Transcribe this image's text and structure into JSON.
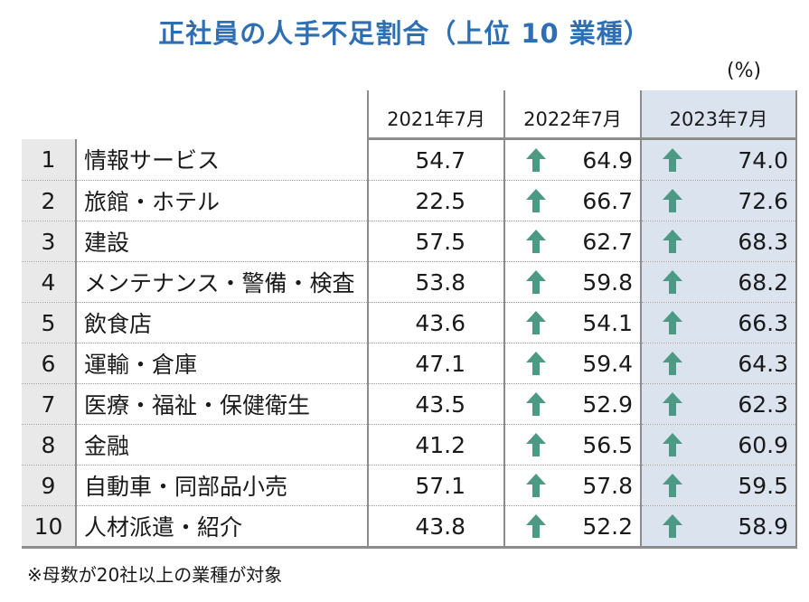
{
  "title": "正社員の人手不足割合（上位 10 業種）",
  "unit": "(%)",
  "note": "※母数が20社以上の業種が対象",
  "colors": {
    "title": "#2e6fb4",
    "arrow": "#4c9a84",
    "highlight_column": "#dbe3ef",
    "rank_cell": "#e9e9e9"
  },
  "icons": {
    "trend": "up-arrow-icon"
  },
  "chart_data": {
    "type": "table",
    "title": "正社員の人手不足割合（上位 10 業種）",
    "unit": "(%)",
    "columns": [
      "2021年7月",
      "2022年7月",
      "2023年7月"
    ],
    "rows": [
      {
        "rank": "1",
        "industry": "情報サービス",
        "values": [
          "54.7",
          "64.9",
          "74.0"
        ]
      },
      {
        "rank": "2",
        "industry": "旅館・ホテル",
        "values": [
          "22.5",
          "66.7",
          "72.6"
        ]
      },
      {
        "rank": "3",
        "industry": "建設",
        "values": [
          "57.5",
          "62.7",
          "68.3"
        ]
      },
      {
        "rank": "4",
        "industry": "メンテナンス・警備・検査",
        "values": [
          "53.8",
          "59.8",
          "68.2"
        ]
      },
      {
        "rank": "5",
        "industry": "飲食店",
        "values": [
          "43.6",
          "54.1",
          "66.3"
        ]
      },
      {
        "rank": "6",
        "industry": "運輸・倉庫",
        "values": [
          "47.1",
          "59.4",
          "64.3"
        ]
      },
      {
        "rank": "7",
        "industry": "医療・福祉・保健衛生",
        "values": [
          "43.5",
          "52.9",
          "62.3"
        ]
      },
      {
        "rank": "8",
        "industry": "金融",
        "values": [
          "41.2",
          "56.5",
          "60.9"
        ]
      },
      {
        "rank": "9",
        "industry": "自動車・同部品小売",
        "values": [
          "57.1",
          "57.8",
          "59.5"
        ]
      },
      {
        "rank": "10",
        "industry": "人材派遣・紹介",
        "values": [
          "43.8",
          "52.2",
          "58.9"
        ]
      }
    ]
  }
}
